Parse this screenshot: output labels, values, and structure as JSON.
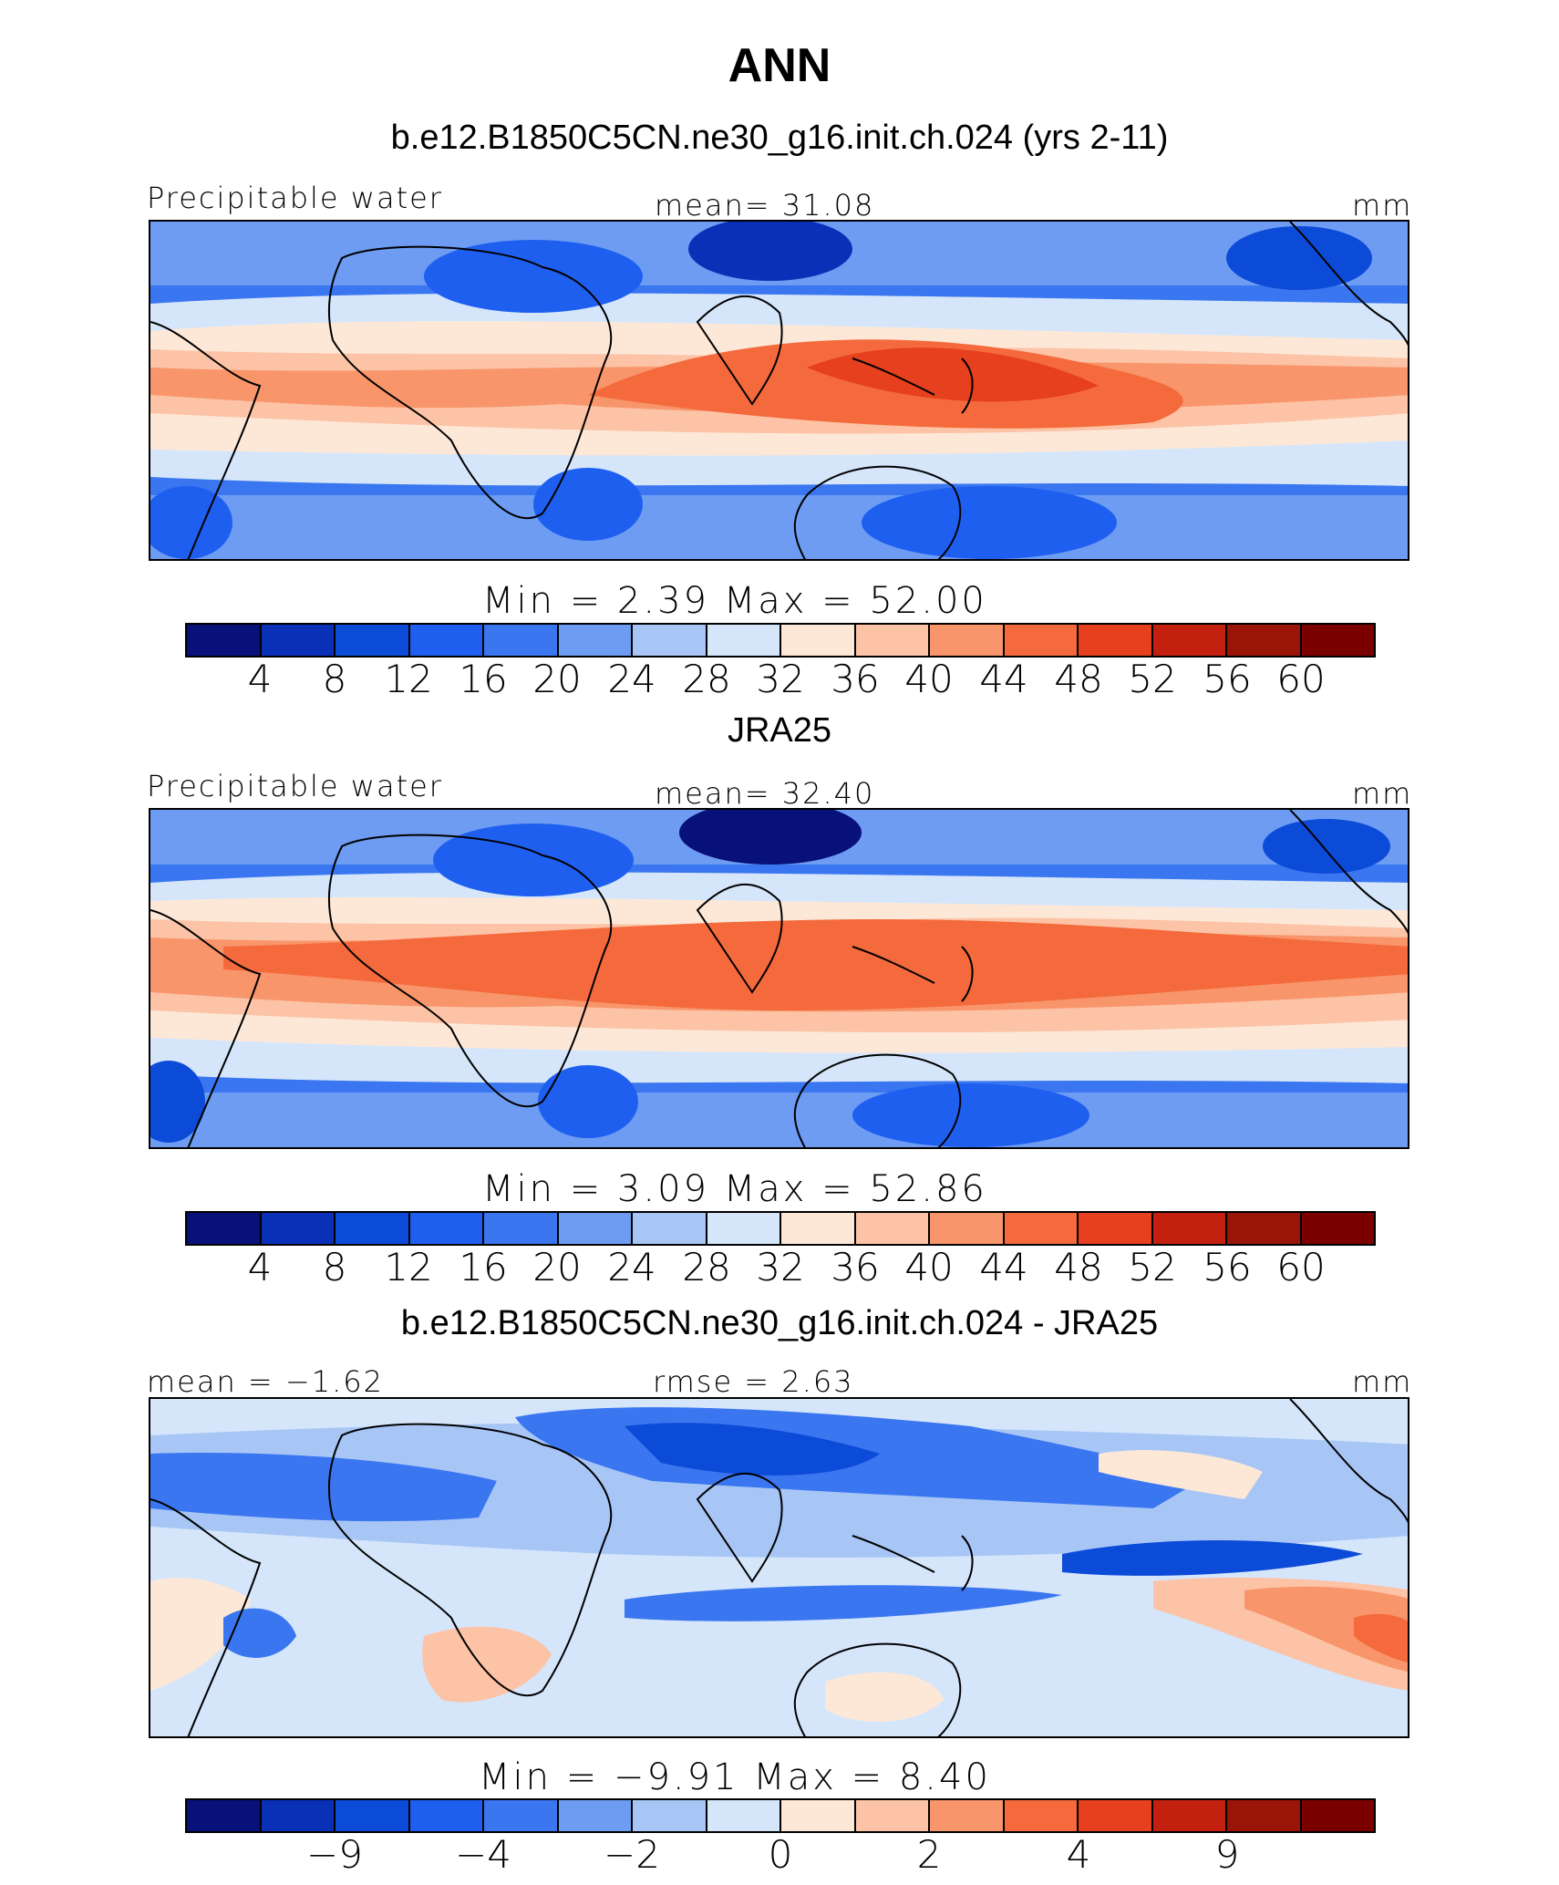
{
  "figure": {
    "title": "ANN"
  },
  "colors": {
    "palette": [
      "#08107a",
      "#0a30b8",
      "#0c4ad8",
      "#1f5ff0",
      "#3a76f0",
      "#6d9cf2",
      "#a7c6f6",
      "#d5e6fb",
      "#fde8d8",
      "#fcc3a6",
      "#f8956a",
      "#f46a3c",
      "#e6401e",
      "#c32010",
      "#9a1408",
      "#7a0000"
    ]
  },
  "chart_data": [
    {
      "type": "heatmap",
      "panel": "model",
      "title": "b.e12.B1850C5CN.ne30_g16.init.ch.024 (yrs 2-11)",
      "left_label": "Precipitable water",
      "center_label": "mean=  31.08",
      "units": "mm",
      "stats": "Min =     2.39  Max =    52.00",
      "min": 2.39,
      "max": 52.0,
      "mean": 31.08,
      "colorbar_ticks": [
        "4",
        "8",
        "12",
        "16",
        "20",
        "24",
        "28",
        "32",
        "36",
        "40",
        "44",
        "48",
        "52",
        "56",
        "60"
      ],
      "colorbar_bins": 16
    },
    {
      "type": "heatmap",
      "panel": "observations",
      "title": "JRA25",
      "left_label": "Precipitable water",
      "center_label": "mean=  32.40",
      "units": "mm",
      "stats": "Min =     3.09  Max =    52.86",
      "min": 3.09,
      "max": 52.86,
      "mean": 32.4,
      "colorbar_ticks": [
        "4",
        "8",
        "12",
        "16",
        "20",
        "24",
        "28",
        "32",
        "36",
        "40",
        "44",
        "48",
        "52",
        "56",
        "60"
      ],
      "colorbar_bins": 16
    },
    {
      "type": "heatmap",
      "panel": "difference",
      "title": "b.e12.B1850C5CN.ne30_g16.init.ch.024 - JRA25",
      "left_label": "mean =  −1.62",
      "center_label": "rmse =    2.63",
      "units": "mm",
      "stats": "Min =   −9.91  Max =     8.40",
      "min": -9.91,
      "max": 8.4,
      "mean": -1.62,
      "rmse": 2.63,
      "colorbar_ticks": [
        "−9",
        "−4",
        "−2",
        "0",
        "2",
        "4",
        "9"
      ],
      "colorbar_bins": 16
    }
  ]
}
